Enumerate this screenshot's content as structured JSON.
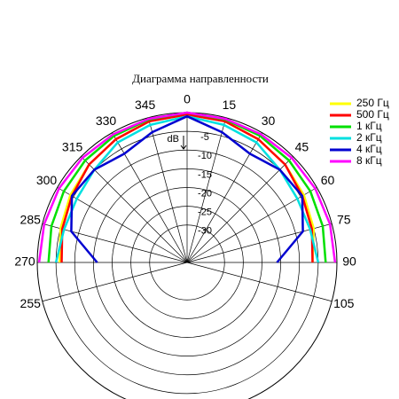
{
  "chart_data": {
    "type": "polar",
    "title": "Диаграмма направленности",
    "r_label": "dB",
    "rlim": [
      -40,
      0
    ],
    "rticks": [
      -5,
      -10,
      -15,
      -20,
      -25,
      -30
    ],
    "thetaticks": [
      255,
      270,
      285,
      300,
      315,
      330,
      345,
      0,
      15,
      30,
      45,
      60,
      75,
      90,
      105
    ],
    "theta": [
      270,
      285,
      300,
      315,
      330,
      345,
      0,
      15,
      30,
      45,
      60,
      75,
      90
    ],
    "series": [
      {
        "name": "250 Гц",
        "color": "#ffff00",
        "values": [
          -6,
          -5,
          -4,
          -3,
          -2,
          -1,
          -0.5,
          -1,
          -2,
          -3,
          -4,
          -5,
          -6.5
        ]
      },
      {
        "name": "500 Гц",
        "color": "#ff0000",
        "values": [
          -6.5,
          -5.5,
          -4.5,
          -3,
          -2,
          -1,
          -0.5,
          -1,
          -2,
          -3,
          -4.5,
          -5.5,
          -6.5
        ]
      },
      {
        "name": "1 кГц",
        "color": "#00e000",
        "values": [
          -3,
          -2.5,
          -2,
          -1.5,
          -1,
          -0.5,
          0,
          -0.5,
          -1,
          -1.5,
          -2,
          -2.5,
          -3
        ]
      },
      {
        "name": "2 кГц",
        "color": "#00e0e0",
        "values": [
          -5,
          -6,
          -6,
          -5,
          -3,
          -2,
          -1,
          -2,
          -3,
          -5,
          -6,
          -6,
          -5
        ]
      },
      {
        "name": "4 кГц",
        "color": "#0000d0",
        "values": [
          -16,
          -8,
          -4.5,
          -5,
          -6.5,
          -4,
          -1,
          -4,
          -6.5,
          -5,
          -4.5,
          -8,
          -16
        ]
      },
      {
        "name": "8 кГц",
        "color": "#ff00ff",
        "values": [
          -0.5,
          -0.5,
          -0.5,
          -0.5,
          -0.5,
          -0.3,
          0,
          -0.3,
          -0.5,
          -0.5,
          -0.5,
          -0.5,
          -0.5
        ]
      }
    ]
  }
}
